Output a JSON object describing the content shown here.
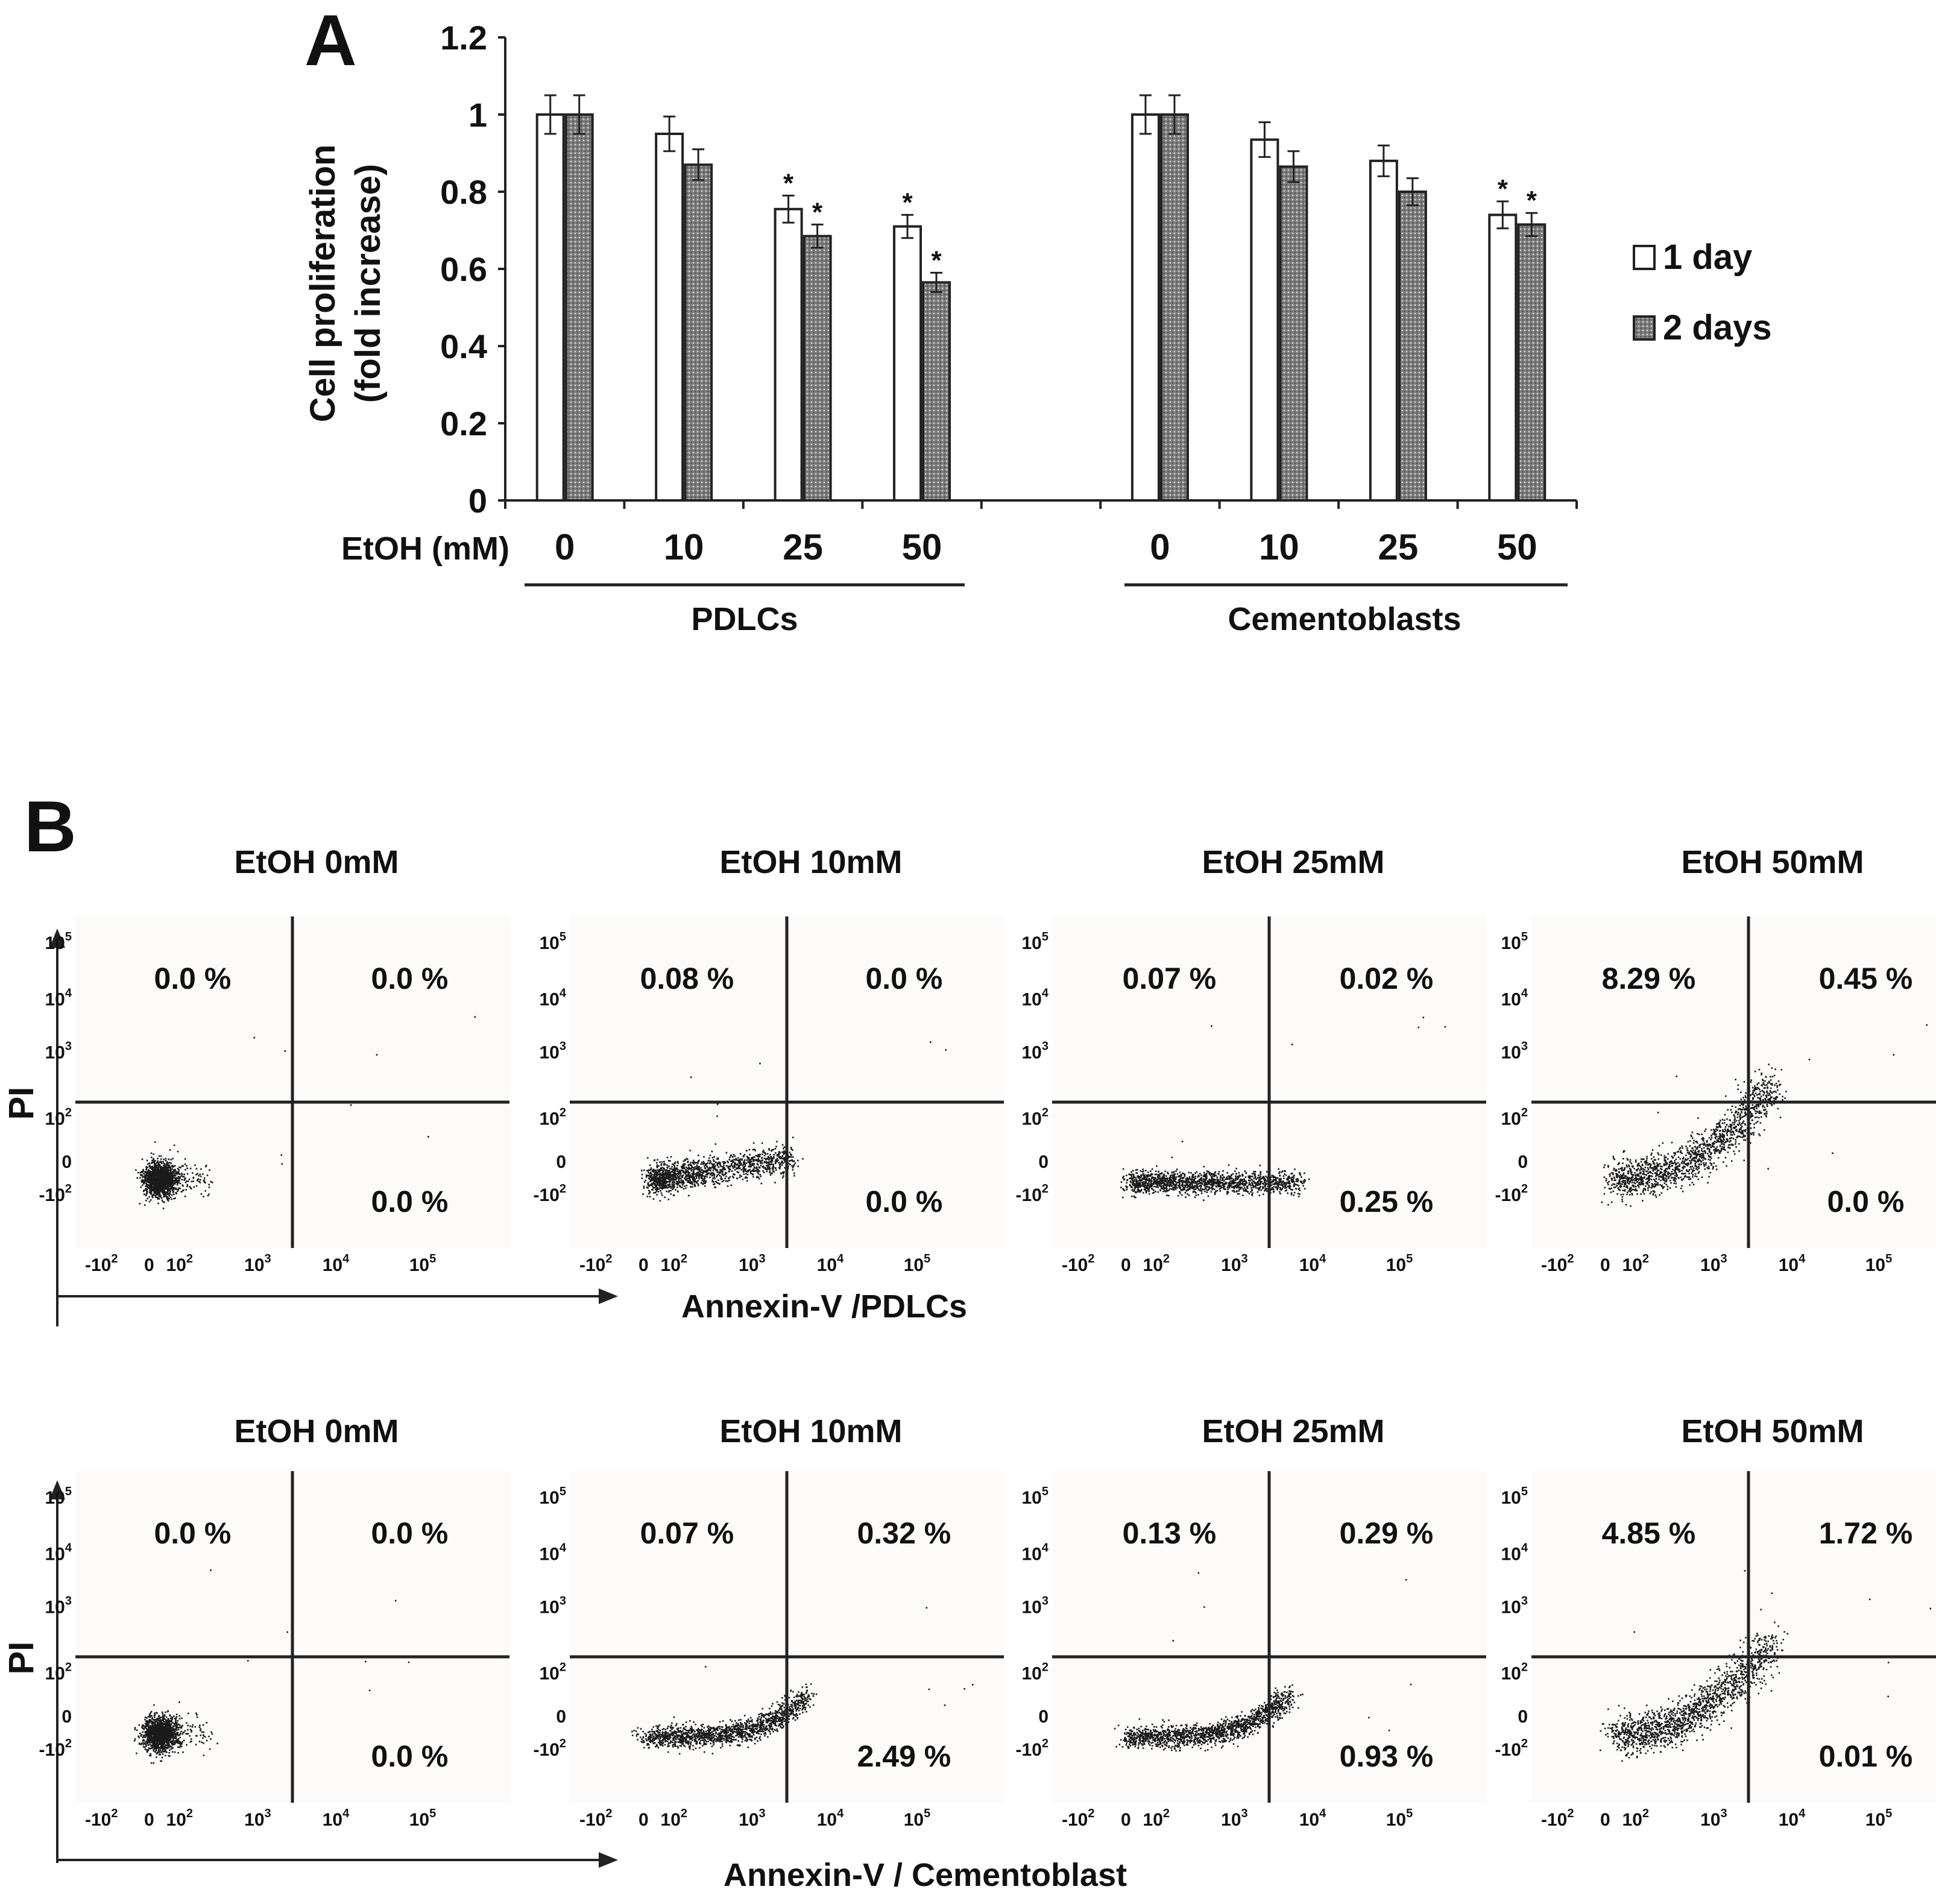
{
  "panel_a": {
    "letter": "A",
    "legend": {
      "series1": "1 day",
      "series2": "2 days"
    }
  },
  "panel_b": {
    "letter": "B",
    "row1_xaxis_label": "Annexin-V /PDLCs",
    "row2_xaxis_label": "Annexin-V / Cementoblast",
    "yaxis_label": "PI"
  },
  "colors": {
    "bar_1day": "#ffffff",
    "bar_2days": "#8a8a8a",
    "ink": "#222222"
  },
  "chart_data": [
    {
      "type": "bar",
      "title": "A",
      "ylabel": "Cell proliferation (fold increase)",
      "ylabel_line1": "Cell proliferation",
      "ylabel_line2": "(fold increase)",
      "xlabel": "EtOH (mM)",
      "ylim": [
        0,
        1.2
      ],
      "yticks": [
        "0",
        "0.2",
        "0.4",
        "0.6",
        "0.8",
        "1",
        "1.2"
      ],
      "groups": [
        {
          "name": "PDLCs",
          "categories": [
            "0",
            "10",
            "25",
            "50"
          ]
        },
        {
          "name": "Cementoblasts",
          "categories": [
            "0",
            "10",
            "25",
            "50"
          ]
        }
      ],
      "series": [
        {
          "name": "1 day",
          "values": [
            1.0,
            0.95,
            0.755,
            0.71,
            1.0,
            0.935,
            0.88,
            0.74
          ],
          "errors": [
            0.05,
            0.045,
            0.035,
            0.03,
            0.05,
            0.045,
            0.04,
            0.035
          ]
        },
        {
          "name": "2 days",
          "values": [
            1.0,
            0.87,
            0.685,
            0.565,
            1.0,
            0.865,
            0.8,
            0.715
          ],
          "errors": [
            0.05,
            0.04,
            0.03,
            0.025,
            0.05,
            0.04,
            0.035,
            0.03
          ]
        }
      ],
      "significance_marker": "*",
      "significant_1day": [
        false,
        false,
        true,
        true,
        false,
        false,
        false,
        true
      ],
      "significant_2days": [
        false,
        false,
        true,
        true,
        false,
        false,
        false,
        true
      ]
    },
    {
      "type": "scatter",
      "title": "B",
      "xlabel_row1": "Annexin-V /PDLCs",
      "xlabel_row2": "Annexin-V / Cementoblast",
      "ylabel": "PI",
      "rows": [
        {
          "cell_type": "PDLCs",
          "plots": [
            {
              "title": "EtOH 0mM",
              "quadrants": {
                "upper_left": "0.0 %",
                "upper_right": "0.0 %",
                "lower_right": "0.0 %"
              },
              "population": "tight-cluster"
            },
            {
              "title": "EtOH 10mM",
              "quadrants": {
                "upper_left": "0.08 %",
                "upper_right": "0.0 %",
                "lower_right": "0.0 %"
              },
              "population": "right-tail"
            },
            {
              "title": "EtOH 25mM",
              "quadrants": {
                "upper_left": "0.07 %",
                "upper_right": "0.02 %",
                "lower_right": "0.25 %"
              },
              "population": "flat-band"
            },
            {
              "title": "EtOH 50mM",
              "quadrants": {
                "upper_left": "8.29 %",
                "upper_right": "0.45 %",
                "lower_right": "0.0 %"
              },
              "population": "rising-comet"
            }
          ]
        },
        {
          "cell_type": "Cementoblast",
          "plots": [
            {
              "title": "EtOH 0mM",
              "quadrants": {
                "upper_left": "0.0 %",
                "upper_right": "0.0 %",
                "lower_right": "0.0 %"
              },
              "population": "tight-cluster"
            },
            {
              "title": "EtOH 10mM",
              "quadrants": {
                "upper_left": "0.07 %",
                "upper_right": "0.32 %",
                "lower_right": "2.49 %"
              },
              "population": "band-to-gate"
            },
            {
              "title": "EtOH 25mM",
              "quadrants": {
                "upper_left": "0.13 %",
                "upper_right": "0.29 %",
                "lower_right": "0.93 %"
              },
              "population": "band-to-gate"
            },
            {
              "title": "EtOH 50mM",
              "quadrants": {
                "upper_left": "4.85 %",
                "upper_right": "1.72 %",
                "lower_right": "0.01 %"
              },
              "population": "rising-comet"
            }
          ]
        }
      ]
    }
  ]
}
